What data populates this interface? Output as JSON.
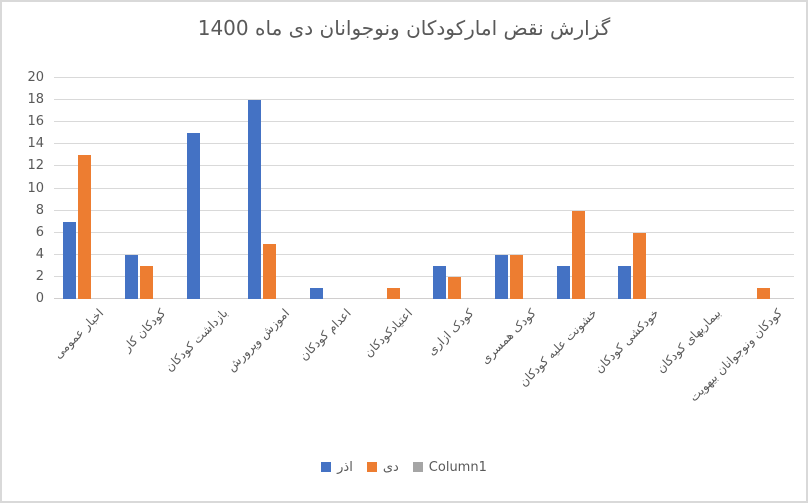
{
  "chart_data": {
    "type": "bar",
    "title": "گزارش نقض امارکودکان ونوجوانان دی ماه 1400",
    "categories": [
      "اخبار عمومی",
      "کودکان کار",
      "بازداشت کودکان",
      "اموزش وپرورش",
      "اعدام کودکان",
      "اعتیادکودکان",
      "کودک ازاری",
      "کودک همسری",
      "خشونت علیه کودکان",
      "خودکشی کودکان",
      "بیماریهای کودکان",
      "کودکان ونوجوانان بیهویت"
    ],
    "series": [
      {
        "id": "azar",
        "name": "اذر",
        "color": "#4472C4",
        "values": [
          7,
          4,
          15,
          18,
          1,
          0,
          3,
          4,
          3,
          3,
          0,
          0
        ]
      },
      {
        "id": "dey",
        "name": "دی",
        "color": "#ED7D31",
        "values": [
          13,
          3,
          0,
          5,
          0,
          1,
          2,
          4,
          8,
          6,
          0,
          1
        ]
      },
      {
        "id": "column1",
        "name": "Column1",
        "color": "#A5A5A5",
        "values": [
          0,
          0,
          0,
          0,
          0,
          0,
          0,
          0,
          0,
          0,
          0,
          0
        ]
      }
    ],
    "xlabel": "",
    "ylabel": "",
    "ylim": [
      0,
      20
    ],
    "ytick_step": 2,
    "yticks": [
      0,
      2,
      4,
      6,
      8,
      10,
      12,
      14,
      16,
      18,
      20
    ],
    "grid": "horizontal",
    "legend_position": "bottom",
    "colors": {
      "text": "#595959",
      "gridline": "#D9D9D9",
      "background": "#FFFFFF",
      "border": "#D9D9D9"
    }
  }
}
